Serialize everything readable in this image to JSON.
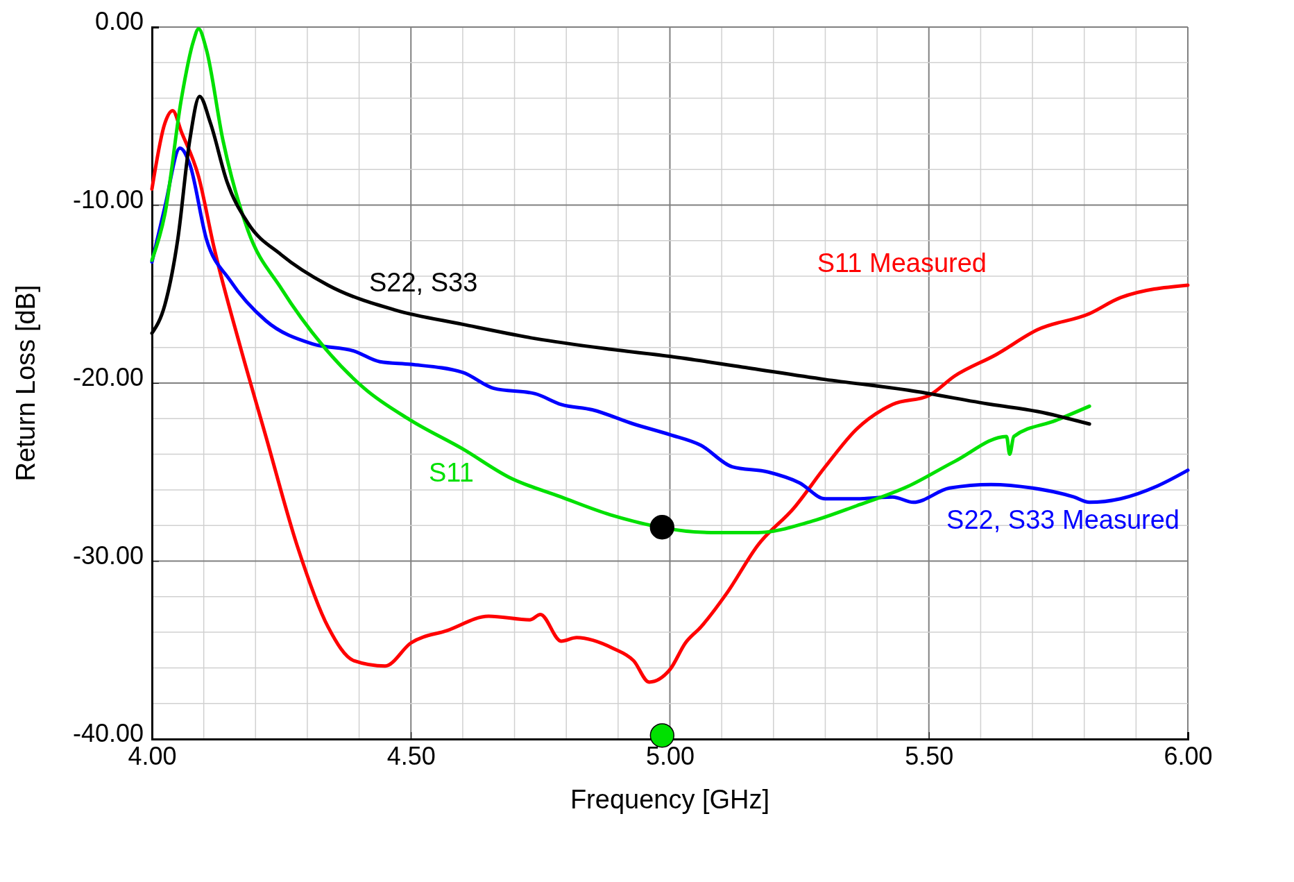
{
  "chart_data": {
    "type": "line",
    "xlabel": "Frequency [GHz]",
    "ylabel": "Return Loss [dB]",
    "xlim": [
      4,
      6
    ],
    "ylim": [
      -40,
      0
    ],
    "xticks": [
      {
        "value": 4,
        "label": "4.00"
      },
      {
        "value": 4.5,
        "label": "4.50"
      },
      {
        "value": 5,
        "label": "5.00"
      },
      {
        "value": 5.5,
        "label": "5.50"
      },
      {
        "value": 6,
        "label": "6.00"
      }
    ],
    "yticks": [
      {
        "value": 0,
        "label": "0.00"
      },
      {
        "value": -10,
        "label": "-10.00"
      },
      {
        "value": -20,
        "label": "-20.00"
      },
      {
        "value": -30,
        "label": "-30.00"
      },
      {
        "value": -40,
        "label": "-40.00"
      }
    ],
    "grid": true,
    "line_style": "solid",
    "series": [
      {
        "name": "S11 Measured",
        "color": "#ff0000",
        "x": [
          4.0,
          4.025,
          4.04,
          4.057,
          4.09,
          4.12,
          4.17,
          4.22,
          4.28,
          4.34,
          4.39,
          4.45,
          4.5,
          4.57,
          4.65,
          4.73,
          4.75,
          4.79,
          4.82,
          4.89,
          4.93,
          4.96,
          5.0,
          5.03,
          5.06,
          5.11,
          5.17,
          5.24,
          5.3,
          5.36,
          5.43,
          5.5,
          5.55,
          5.63,
          5.71,
          5.81,
          5.87,
          6.0
        ],
        "values": [
          -9.1,
          -5.4,
          -4.7,
          -5.9,
          -8.4,
          -12.4,
          -17.9,
          -23.0,
          -29.1,
          -33.7,
          -35.6,
          -35.9,
          -34.6,
          -33.9,
          -33.1,
          -33.3,
          -33.0,
          -34.5,
          -34.3,
          -34.9,
          -35.6,
          -36.8,
          -36.1,
          -34.6,
          -33.7,
          -31.8,
          -29.1,
          -27.0,
          -24.7,
          -22.6,
          -21.2,
          -20.7,
          -19.6,
          -18.4,
          -17.0,
          -16.1,
          -15.2,
          -14.5
        ]
      },
      {
        "name": "S22, S33 Measured",
        "color": "#0000ff",
        "x": [
          4.0,
          4.025,
          4.054,
          4.073,
          4.105,
          4.15,
          4.22,
          4.31,
          4.39,
          4.44,
          4.5,
          4.6,
          4.66,
          4.74,
          4.79,
          4.85,
          4.93,
          5.0,
          5.06,
          5.12,
          5.19,
          5.25,
          5.3,
          5.36,
          5.43,
          5.47,
          5.54,
          5.62,
          5.7,
          5.78,
          5.81,
          5.87,
          5.94,
          6.0
        ],
        "values": [
          -13.2,
          -10.1,
          -6.8,
          -7.7,
          -11.9,
          -14.2,
          -16.5,
          -17.8,
          -18.2,
          -18.8,
          -18.95,
          -19.4,
          -20.3,
          -20.6,
          -21.2,
          -21.5,
          -22.3,
          -22.9,
          -23.5,
          -24.7,
          -25.0,
          -25.6,
          -26.5,
          -26.5,
          -26.4,
          -26.7,
          -25.9,
          -25.7,
          -25.9,
          -26.4,
          -26.7,
          -26.5,
          -25.8,
          -24.9
        ]
      },
      {
        "name": "S11",
        "color": "#00e000",
        "x": [
          4.0,
          4.025,
          4.057,
          4.08,
          4.09,
          4.105,
          4.137,
          4.185,
          4.25,
          4.33,
          4.41,
          4.5,
          4.6,
          4.69,
          4.79,
          4.885,
          4.98,
          5.08,
          5.17,
          5.27,
          5.36,
          5.46,
          5.55,
          5.65,
          5.656,
          5.664,
          5.745,
          5.81
        ],
        "values": [
          -13.1,
          -10.5,
          -4.0,
          -0.8,
          -0.1,
          -1.25,
          -6.35,
          -11.4,
          -14.7,
          -17.9,
          -20.3,
          -22.1,
          -23.7,
          -25.3,
          -26.4,
          -27.4,
          null,
          -28.4,
          -28.4,
          -27.8,
          -26.9,
          -25.8,
          -24.4,
          -23.0,
          -24.0,
          -23.0,
          -22.1,
          -21.3
        ]
      },
      {
        "name": "S22, S33",
        "color": "#000000",
        "x": [
          4.0,
          4.025,
          4.05,
          4.073,
          4.092,
          4.113,
          4.145,
          4.185,
          4.25,
          4.34,
          4.47,
          4.6,
          4.74,
          4.885,
          5.0,
          5.14,
          5.3,
          5.46,
          5.62,
          5.71,
          5.81
        ],
        "values": [
          -17.2,
          -15.6,
          -11.9,
          -6.35,
          -3.9,
          -5.4,
          -8.7,
          -11.0,
          -12.8,
          -14.5,
          -15.9,
          -16.7,
          -17.5,
          -18.1,
          -18.5,
          -19.1,
          -19.8,
          -20.4,
          -21.2,
          -21.6,
          -22.3
        ]
      },
      {
        "type": "scatter",
        "marker": "circle",
        "color": "#000000",
        "x": [
          4.985
        ],
        "values": [
          -28.1
        ]
      },
      {
        "type": "scatter",
        "marker": "circle",
        "color": "#00e000",
        "x": [
          4.985
        ],
        "values": [
          -39.8
        ]
      }
    ]
  }
}
